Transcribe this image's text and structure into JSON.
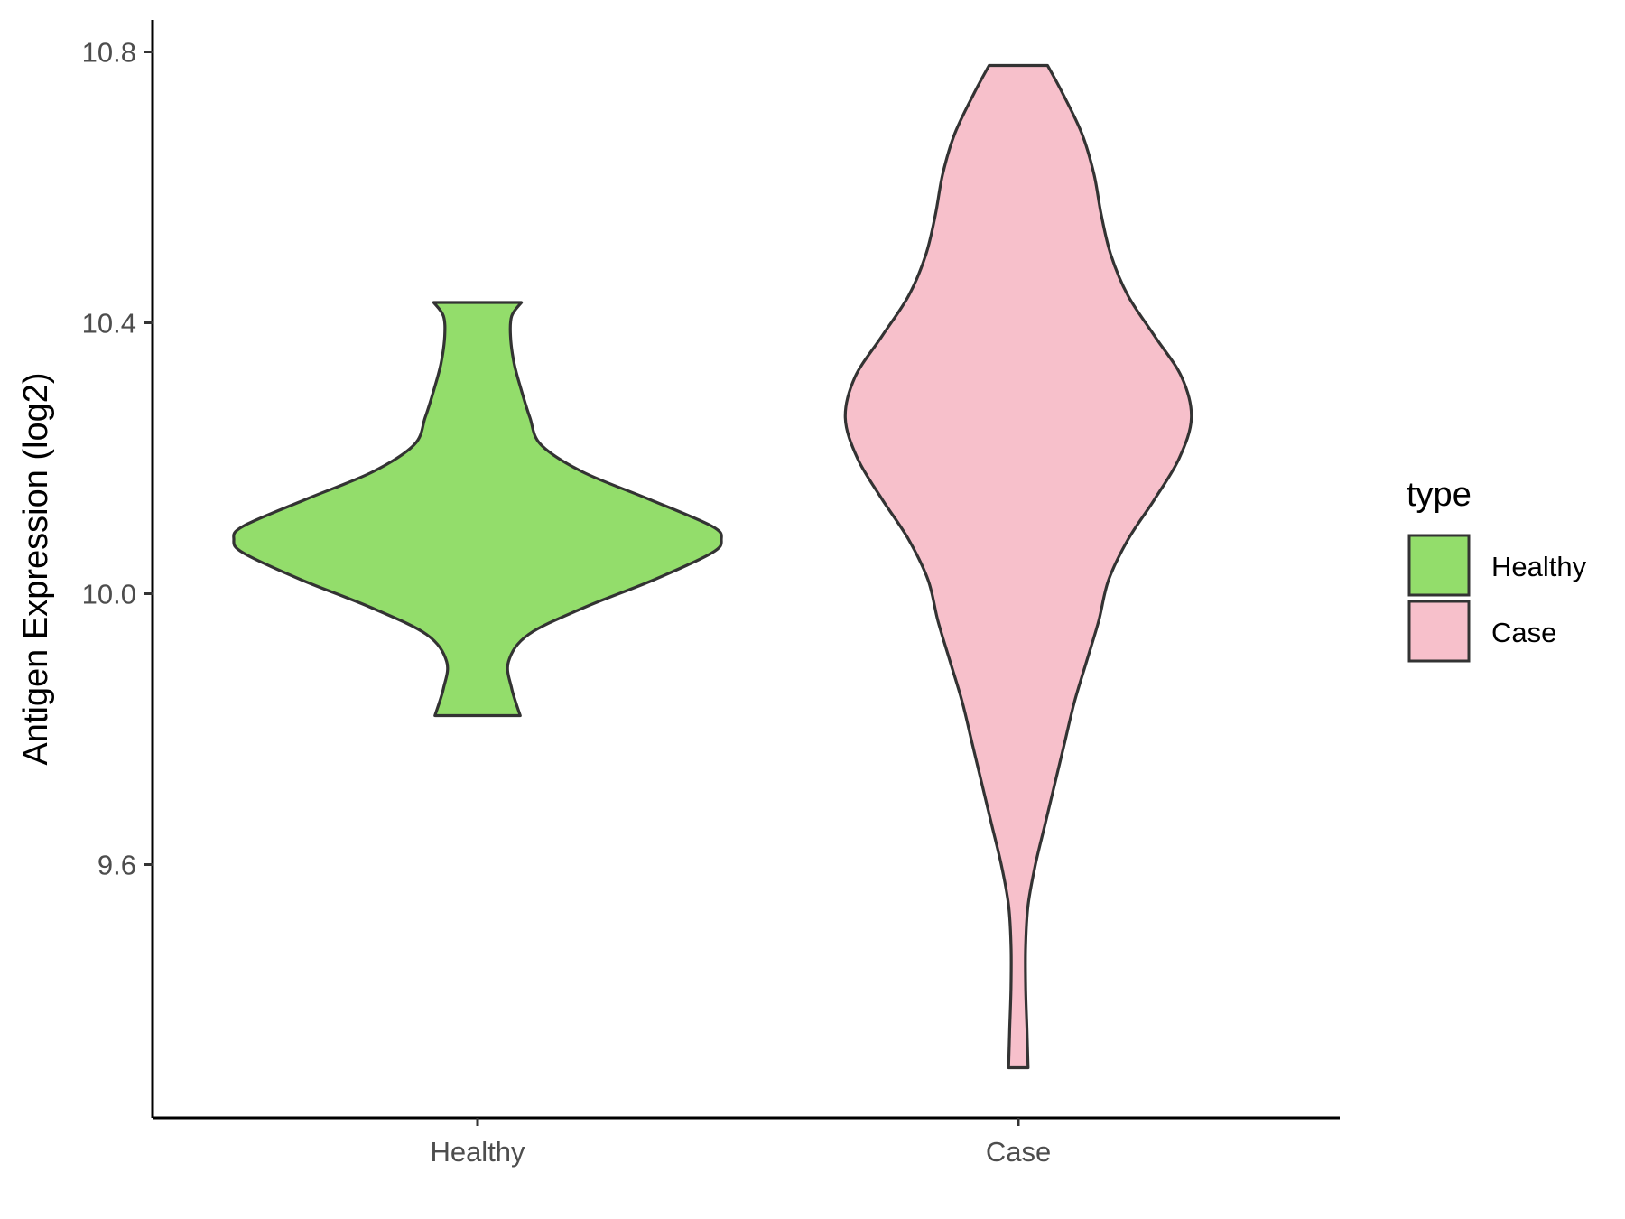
{
  "chart_data": {
    "type": "violin",
    "title": "",
    "xlabel": "",
    "ylabel": "Antigen Expression (log2)",
    "categories": [
      "Healthy",
      "Case"
    ],
    "y_ticks": [
      "9.6",
      "10.0",
      "10.4",
      "10.8"
    ],
    "y_tick_values": [
      9.6,
      10.0,
      10.4,
      10.8
    ],
    "ylim": [
      9.23,
      10.85
    ],
    "grid": false,
    "legend": {
      "title": "type",
      "position": "right",
      "entries": [
        "Healthy",
        "Case"
      ]
    },
    "series": [
      {
        "category": "Healthy",
        "color": "#93DD6B",
        "min": 9.82,
        "max": 10.43,
        "median_density_peak": 10.08,
        "profile": [
          [
            9.82,
            0.175
          ],
          [
            9.86,
            0.14
          ],
          [
            9.9,
            0.127
          ],
          [
            9.94,
            0.21
          ],
          [
            9.98,
            0.44
          ],
          [
            10.02,
            0.72
          ],
          [
            10.06,
            0.96
          ],
          [
            10.08,
            1.0
          ],
          [
            10.1,
            0.96
          ],
          [
            10.14,
            0.7
          ],
          [
            10.18,
            0.43
          ],
          [
            10.22,
            0.26
          ],
          [
            10.26,
            0.215
          ],
          [
            10.3,
            0.18
          ],
          [
            10.34,
            0.15
          ],
          [
            10.38,
            0.135
          ],
          [
            10.41,
            0.14
          ],
          [
            10.43,
            0.18
          ]
        ]
      },
      {
        "category": "Case",
        "color": "#F7C0CB",
        "min": 9.3,
        "max": 10.78,
        "median_density_peak": 10.26,
        "profile": [
          [
            9.3,
            0.04
          ],
          [
            9.36,
            0.035
          ],
          [
            9.42,
            0.03
          ],
          [
            9.48,
            0.03
          ],
          [
            9.54,
            0.04
          ],
          [
            9.6,
            0.07
          ],
          [
            9.66,
            0.11
          ],
          [
            9.72,
            0.15
          ],
          [
            9.78,
            0.19
          ],
          [
            9.84,
            0.23
          ],
          [
            9.9,
            0.28
          ],
          [
            9.96,
            0.33
          ],
          [
            10.02,
            0.37
          ],
          [
            10.08,
            0.45
          ],
          [
            10.14,
            0.56
          ],
          [
            10.2,
            0.66
          ],
          [
            10.26,
            0.71
          ],
          [
            10.32,
            0.67
          ],
          [
            10.38,
            0.56
          ],
          [
            10.44,
            0.45
          ],
          [
            10.5,
            0.38
          ],
          [
            10.56,
            0.34
          ],
          [
            10.62,
            0.31
          ],
          [
            10.68,
            0.26
          ],
          [
            10.74,
            0.18
          ],
          [
            10.78,
            0.12
          ]
        ]
      }
    ]
  }
}
